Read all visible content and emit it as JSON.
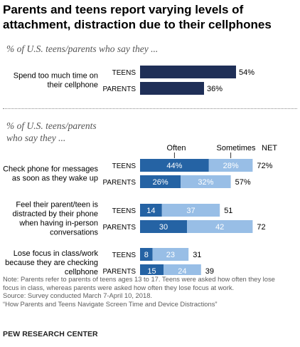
{
  "title": "Parents and teens report varying levels of attachment, distraction due to their cellphones",
  "subtitle_1": "% of U.S. teens/parents who say they ...",
  "subtitle_2": "% of U.S. teens/parents who say they ...",
  "colors": {
    "navy": "#1f2f57",
    "often": "#2563a4",
    "sometimes": "#98bee6",
    "text": "#000000"
  },
  "chart_data": [
    {
      "type": "bar",
      "categories": [
        "Spend too much time on their cellphone"
      ],
      "groups": [
        "TEENS",
        "PARENTS"
      ],
      "values": [
        {
          "TEENS": 54,
          "PARENTS": 36
        }
      ],
      "value_labels": [
        {
          "TEENS": "54%",
          "PARENTS": "36%"
        }
      ]
    },
    {
      "type": "bar",
      "stacked": true,
      "legend": {
        "often": "Often",
        "sometimes": "Sometimes",
        "net": "NET"
      },
      "categories": [
        "Check phone for messages as soon as they wake up",
        "Feel their parent/teen is distracted by their phone when having in-person conversations",
        "Lose focus in class/work because they are checking cellphone"
      ],
      "rows": [
        {
          "category": 0,
          "group": "TEENS",
          "often": 44,
          "sometimes": 28,
          "net": 72,
          "often_label": "44%",
          "sometimes_label": "28%",
          "net_label": "72%"
        },
        {
          "category": 0,
          "group": "PARENTS",
          "often": 26,
          "sometimes": 32,
          "net": 57,
          "often_label": "26%",
          "sometimes_label": "32%",
          "net_label": "57%"
        },
        {
          "category": 1,
          "group": "TEENS",
          "often": 14,
          "sometimes": 37,
          "net": 51,
          "often_label": "14",
          "sometimes_label": "37",
          "net_label": "51"
        },
        {
          "category": 1,
          "group": "PARENTS",
          "often": 30,
          "sometimes": 42,
          "net": 72,
          "often_label": "30",
          "sometimes_label": "42",
          "net_label": "72"
        },
        {
          "category": 2,
          "group": "TEENS",
          "often": 8,
          "sometimes": 23,
          "net": 31,
          "often_label": "8",
          "sometimes_label": "23",
          "net_label": "31"
        },
        {
          "category": 2,
          "group": "PARENTS",
          "often": 15,
          "sometimes": 24,
          "net": 39,
          "often_label": "15",
          "sometimes_label": "24",
          "net_label": "39"
        }
      ]
    }
  ],
  "notes": [
    "Note: Parents refer to parents of teens ages 13 to 17. Teens were asked how often they lose",
    "focus in class, whereas parents were asked how often they lose focus at work.",
    "Source: Survey conducted March 7-April 10, 2018.",
    "“How Parents and Teens Navigate Screen Time and Device Distractions”"
  ],
  "brand": "PEW RESEARCH CENTER"
}
